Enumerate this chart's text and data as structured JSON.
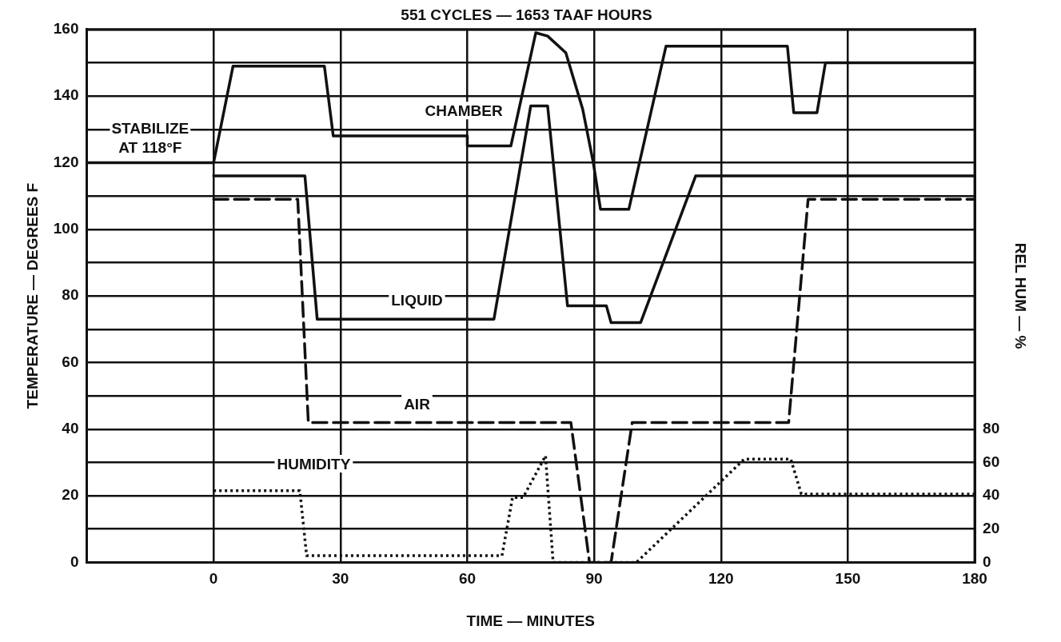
{
  "chart_data": {
    "type": "line",
    "title": "551 CYCLES — 1653 TAAF HOURS",
    "xlabel": "TIME — MINUTES",
    "ylabel": "TEMPERATURE — DEGREES F",
    "y2label": "REL HUM — %",
    "xlim": [
      -30,
      180
    ],
    "xticks": [
      0,
      30,
      60,
      90,
      120,
      150,
      180
    ],
    "ylim": [
      0,
      160
    ],
    "yticks": [
      0,
      {
        "value": 10,
        "label": null
      },
      20,
      {
        "value": 30,
        "label": null
      },
      40,
      {
        "value": 50,
        "label": null
      },
      60,
      {
        "value": 70,
        "label": null
      },
      80,
      {
        "value": 90,
        "label": null
      },
      100,
      {
        "value": 110,
        "label": null
      },
      120,
      {
        "value": 130,
        "label": null
      },
      140,
      {
        "value": 150,
        "label": null
      },
      160
    ],
    "y2lim": [
      0,
      320
    ],
    "y2ticks": [
      0,
      20,
      40,
      60,
      80
    ],
    "grid": true,
    "legend": false,
    "marker": "none",
    "annotations": [
      {
        "text": "STABILIZE AT 118°F",
        "x": -15,
        "y": 120
      }
    ],
    "series": [
      {
        "name": "CHAMBER",
        "color": "#111111",
        "line_style": "solid",
        "x": [
          -30,
          0,
          4.6,
          26.2,
          28.3,
          60,
          60,
          70.3,
          76.2,
          79,
          83.3,
          87.3,
          89.8,
          91.5,
          98.2,
          107,
          135.7,
          137.2,
          142.7,
          144.7,
          180
        ],
        "values": [
          120,
          120,
          149,
          149,
          128,
          128,
          125,
          125,
          159,
          158,
          153,
          136,
          120,
          106,
          106,
          155,
          155,
          135,
          135,
          150,
          150
        ]
      },
      {
        "name": "LIQUID",
        "color": "#111111",
        "line_style": "solid",
        "x": [
          0,
          21.6,
          24.5,
          66.3,
          75,
          79,
          83.7,
          92.9,
          94,
          101,
          114,
          180
        ],
        "values": [
          116,
          116,
          73,
          73,
          137,
          137,
          77,
          77,
          72,
          72,
          116,
          116
        ]
      },
      {
        "name": "AIR",
        "color": "#111111",
        "line_style": "dashed",
        "x": [
          0,
          19.9,
          22.4,
          84.5,
          88.9,
          94,
          99,
          136,
          140.6,
          180
        ],
        "values": [
          109,
          109,
          42,
          42,
          0,
          0,
          42,
          42,
          109,
          109
        ]
      },
      {
        "name": "HUMIDITY",
        "color": "#111111",
        "line_style": "dotted",
        "axis": "y2",
        "x": [
          0,
          20.4,
          22,
          68.2,
          70.7,
          73.2,
          78.5,
          80.3,
          100,
          125.5,
          136.5,
          139,
          180
        ],
        "values": [
          43,
          43,
          4,
          4,
          39,
          39,
          64,
          0,
          0,
          62,
          62,
          41,
          41
        ]
      }
    ]
  }
}
